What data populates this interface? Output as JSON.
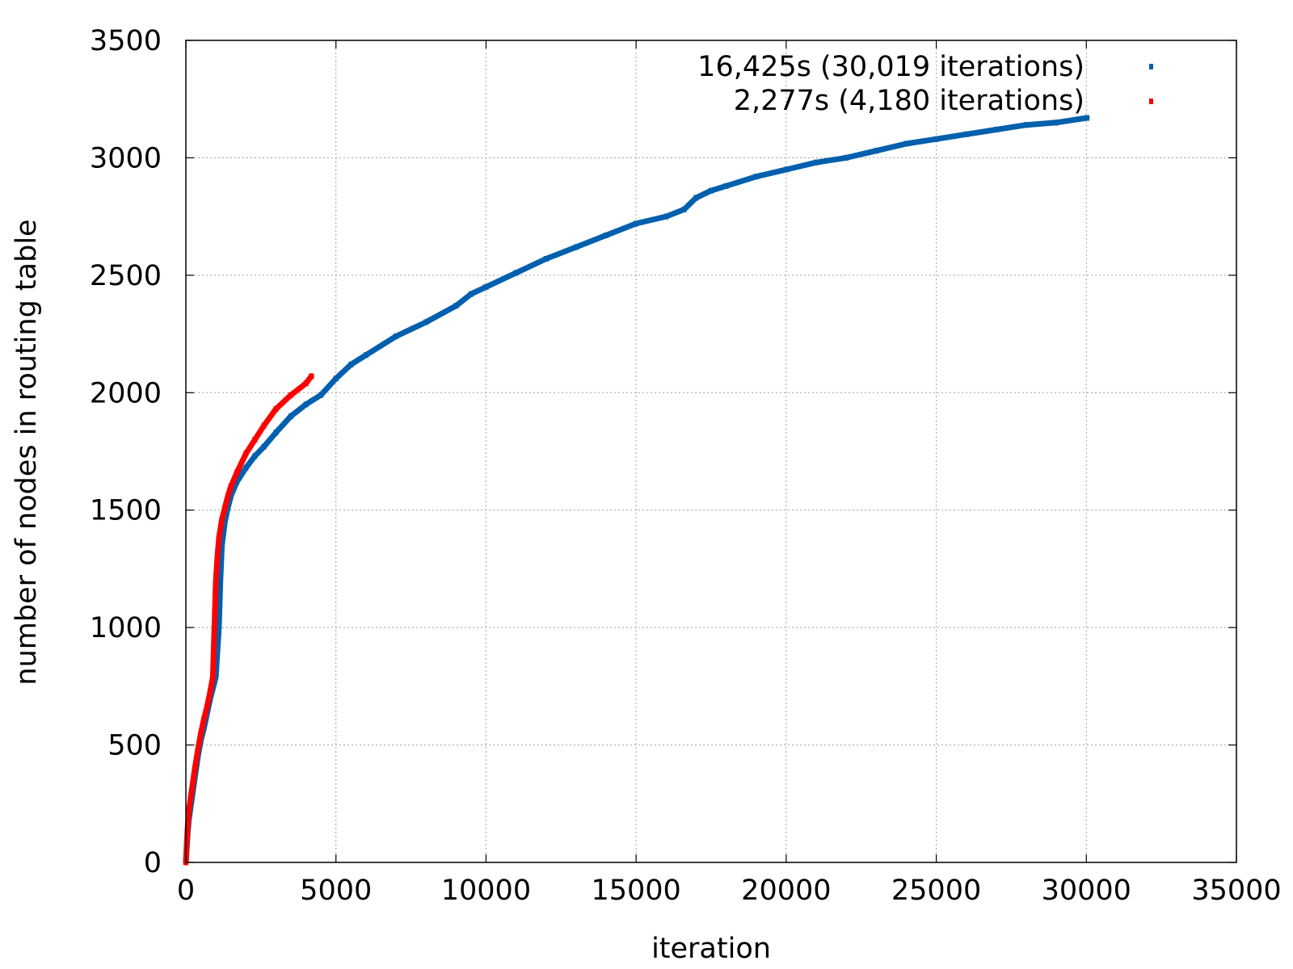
{
  "chart_data": {
    "type": "scatter",
    "xlabel": "iteration",
    "ylabel": "number of nodes in routing table",
    "xlim": [
      0,
      35000
    ],
    "ylim": [
      0,
      3500
    ],
    "xticks": [
      0,
      5000,
      10000,
      15000,
      20000,
      25000,
      30000,
      35000
    ],
    "yticks": [
      0,
      500,
      1000,
      1500,
      2000,
      2500,
      3000,
      3500
    ],
    "grid": true,
    "legend_position": "top-right",
    "series": [
      {
        "name": "16,425s (30,019 iterations)",
        "color": "#0060ad",
        "x": [
          0,
          30,
          60,
          100,
          200,
          300,
          400,
          500,
          600,
          700,
          800,
          900,
          1000,
          1100,
          1150,
          1200,
          1300,
          1400,
          1500,
          1700,
          2000,
          2300,
          2600,
          3000,
          3500,
          4000,
          4500,
          5000,
          5500,
          6000,
          7000,
          8000,
          9000,
          9500,
          10000,
          11000,
          12000,
          13000,
          14000,
          15000,
          16000,
          16600,
          17000,
          17500,
          18000,
          19000,
          20000,
          21000,
          22000,
          23000,
          24000,
          25000,
          26000,
          27000,
          28000,
          29000,
          30019
        ],
        "y": [
          0,
          60,
          120,
          180,
          270,
          360,
          450,
          520,
          570,
          630,
          690,
          740,
          790,
          1000,
          1200,
          1350,
          1450,
          1510,
          1560,
          1620,
          1680,
          1730,
          1770,
          1830,
          1900,
          1950,
          1990,
          2060,
          2120,
          2160,
          2240,
          2300,
          2370,
          2420,
          2450,
          2510,
          2570,
          2620,
          2670,
          2720,
          2750,
          2780,
          2830,
          2860,
          2880,
          2920,
          2950,
          2980,
          3000,
          3030,
          3060,
          3080,
          3100,
          3120,
          3140,
          3150,
          3170
        ]
      },
      {
        "name": "2,277s (4,180 iterations)",
        "color": "#ff0000",
        "x": [
          0,
          30,
          60,
          100,
          200,
          300,
          400,
          500,
          600,
          700,
          800,
          900,
          950,
          1000,
          1050,
          1100,
          1200,
          1300,
          1400,
          1500,
          1700,
          2000,
          2300,
          2600,
          3000,
          3500,
          4000,
          4180
        ],
        "y": [
          0,
          80,
          150,
          220,
          310,
          400,
          480,
          550,
          610,
          660,
          720,
          790,
          1000,
          1200,
          1300,
          1380,
          1460,
          1510,
          1560,
          1600,
          1660,
          1740,
          1800,
          1860,
          1930,
          1990,
          2040,
          2070
        ]
      }
    ]
  }
}
